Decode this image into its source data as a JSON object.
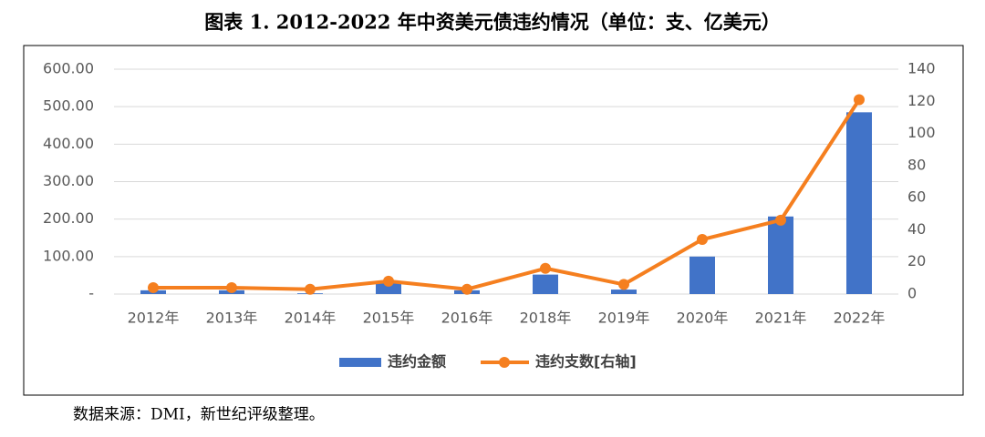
{
  "chart_data": {
    "type": "bar",
    "title": "图表 1. 2012-2022 年中资美元债违约情况（单位：支、亿美元）",
    "categories": [
      "2012年",
      "2013年",
      "2014年",
      "2015年",
      "2016年",
      "2018年",
      "2019年",
      "2020年",
      "2021年",
      "2022年"
    ],
    "series": [
      {
        "name": "违约金额",
        "color": "#4173c8",
        "values": [
          10,
          10,
          2,
          30,
          10,
          52,
          12,
          100,
          207,
          485
        ]
      },
      {
        "name": "违约支数[右轴]",
        "color": "#f57f1f",
        "type": "line",
        "axis": "y2",
        "values": [
          4,
          4,
          3,
          8,
          3,
          16,
          6,
          34,
          46,
          121
        ]
      }
    ],
    "ylim": [
      0,
      600
    ],
    "yticks": [
      {
        "value": 0,
        "label": "-"
      },
      {
        "value": 100,
        "label": "100.00"
      },
      {
        "value": 200,
        "label": "200.00"
      },
      {
        "value": 300,
        "label": "300.00"
      },
      {
        "value": 400,
        "label": "400.00"
      },
      {
        "value": 500,
        "label": "500.00"
      },
      {
        "value": 600,
        "label": "600.00"
      }
    ],
    "y2lim": [
      0,
      140
    ],
    "y2ticks": [
      0,
      20,
      40,
      60,
      80,
      100,
      120,
      140
    ],
    "grid": true,
    "legend": "bottom",
    "source": "数据来源：DMI，新世纪评级整理。"
  }
}
